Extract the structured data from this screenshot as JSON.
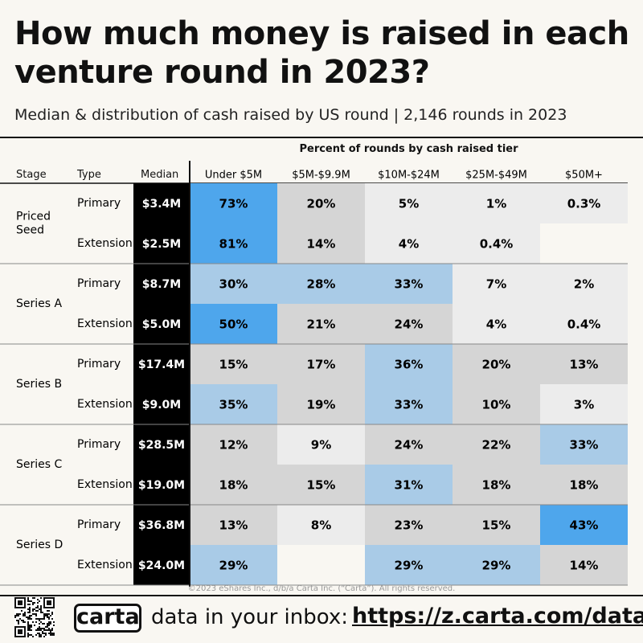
{
  "title": "How much money is raised in each venture round in 2023?",
  "subtitle": "Median & distribution of cash raised by US round | 2,146 rounds in 2023",
  "table": {
    "tiers_header": "Percent of rounds by cash raised tier",
    "col_stage": "Stage",
    "col_type": "Type",
    "col_median": "Median"
  },
  "chart_data": {
    "type": "table",
    "title": "How much money is raised in each venture round in 2023?",
    "subtitle": "Median & distribution of cash raised by US round | 2,146 rounds in 2023",
    "tiers": [
      "Under $5M",
      "$5M-$9.9M",
      "$10M-$24M",
      "$25M-$49M",
      "$50M+"
    ],
    "rows": [
      {
        "stage": "Priced Seed",
        "type": "Primary",
        "median": "$3.4M",
        "values": [
          73,
          20,
          5,
          1,
          0.3
        ]
      },
      {
        "stage": "Priced Seed",
        "type": "Extension",
        "median": "$2.5M",
        "values": [
          81,
          14,
          4,
          0.4,
          null
        ]
      },
      {
        "stage": "Series A",
        "type": "Primary",
        "median": "$8.7M",
        "values": [
          30,
          28,
          33,
          7,
          2
        ]
      },
      {
        "stage": "Series A",
        "type": "Extension",
        "median": "$5.0M",
        "values": [
          50,
          21,
          24,
          4,
          0.4
        ]
      },
      {
        "stage": "Series B",
        "type": "Primary",
        "median": "$17.4M",
        "values": [
          15,
          17,
          36,
          20,
          13
        ]
      },
      {
        "stage": "Series B",
        "type": "Extension",
        "median": "$9.0M",
        "values": [
          35,
          19,
          33,
          10,
          3
        ]
      },
      {
        "stage": "Series C",
        "type": "Primary",
        "median": "$28.5M",
        "values": [
          12,
          9,
          24,
          22,
          33
        ]
      },
      {
        "stage": "Series C",
        "type": "Extension",
        "median": "$19.0M",
        "values": [
          18,
          15,
          31,
          18,
          18
        ]
      },
      {
        "stage": "Series D",
        "type": "Primary",
        "median": "$36.8M",
        "values": [
          13,
          8,
          23,
          15,
          43
        ]
      },
      {
        "stage": "Series D",
        "type": "Extension",
        "median": "$24.0M",
        "values": [
          29,
          null,
          29,
          29,
          14
        ]
      }
    ],
    "stages": [
      {
        "label": "Priced Seed",
        "lines": [
          "Priced",
          "Seed"
        ]
      },
      {
        "label": "Series A",
        "lines": [
          "Series A"
        ]
      },
      {
        "label": "Series B",
        "lines": [
          "Series B"
        ]
      },
      {
        "label": "Series C",
        "lines": [
          "Series C"
        ]
      },
      {
        "label": "Series D",
        "lines": [
          "Series D"
        ]
      }
    ],
    "value_suffix": "%",
    "colors": {
      "median_bg": "#000000",
      "median_text": "#ffffff",
      "high": "#4ea6ec",
      "mid": "#a9cbe7",
      "low": "#d5d5d5",
      "lowest": "#ececec",
      "empty": "#f9f7f2"
    }
  },
  "footer": {
    "copyright": "©2023 eShares Inc., d/b/a Carta Inc. (“Carta”). All rights reserved.",
    "logo": "carta",
    "text": "data in your inbox:",
    "url": "https://z.carta.com/data"
  }
}
